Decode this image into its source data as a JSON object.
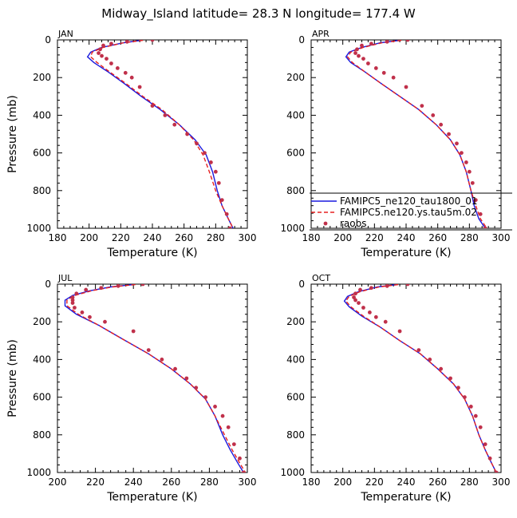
{
  "title": "Midway_Island  latitude= 28.3 N longitude= 177.4 W",
  "colors": {
    "model1": "#1a1adf",
    "model2": "#e62020",
    "obs": "#c0304a",
    "axis": "#000000"
  },
  "legend": {
    "items": [
      {
        "label": "FAMIPC5_ne120_tau1800_01",
        "style": "solid",
        "color": "#1a1adf"
      },
      {
        "label": "FAMIPC5.ne120.ys.tau5m.02",
        "style": "dashed",
        "color": "#e62020"
      },
      {
        "label": "raobs",
        "style": "dot",
        "color": "#c0304a"
      }
    ]
  },
  "chart_data": [
    {
      "type": "line",
      "title": "JAN",
      "xlabel": "Temperature (K)",
      "ylabel": "Pressure (mb)",
      "xlim": [
        180,
        300
      ],
      "ylim": [
        1000,
        0
      ],
      "xticks": [
        180,
        200,
        220,
        240,
        260,
        280,
        300
      ],
      "yticks": [
        0,
        200,
        400,
        600,
        800,
        1000
      ],
      "series": [
        {
          "name": "FAMIPC5_ne120_tau1800_01",
          "style": "solid",
          "x": [
            233,
            222,
            208,
            201,
            199,
            203,
            212,
            222,
            233,
            245,
            257,
            267,
            274,
            278,
            281,
            284,
            288,
            291
          ],
          "y": [
            2,
            15,
            40,
            65,
            90,
            120,
            170,
            230,
            300,
            370,
            450,
            530,
            610,
            700,
            800,
            880,
            950,
            1000
          ]
        },
        {
          "name": "FAMIPC5.ne120.ys.tau5m.02",
          "style": "dashed",
          "x": [
            234,
            222,
            209,
            202,
            201,
            205,
            213,
            223,
            234,
            246,
            257,
            266,
            272,
            276,
            280,
            284,
            288,
            291
          ],
          "y": [
            2,
            15,
            40,
            65,
            90,
            120,
            170,
            230,
            300,
            370,
            450,
            530,
            610,
            700,
            800,
            880,
            950,
            1000
          ]
        },
        {
          "name": "raobs",
          "style": "dot",
          "x": [
            240,
            224,
            214,
            209,
            207,
            206,
            208,
            211,
            214,
            218,
            223,
            227,
            232,
            240,
            248,
            254,
            262,
            268,
            273,
            277,
            280,
            282,
            284,
            287,
            289
          ],
          "y": [
            0,
            10,
            20,
            30,
            50,
            70,
            85,
            100,
            125,
            150,
            175,
            200,
            250,
            350,
            400,
            450,
            500,
            550,
            600,
            650,
            700,
            760,
            850,
            925,
            1000
          ]
        }
      ]
    },
    {
      "type": "line",
      "title": "APR",
      "xlabel": "Temperature (K)",
      "ylabel": "",
      "xlim": [
        180,
        300
      ],
      "ylim": [
        1000,
        0
      ],
      "xticks": [
        180,
        200,
        220,
        240,
        260,
        280,
        300
      ],
      "yticks": [
        0,
        200,
        400,
        600,
        800,
        1000
      ],
      "series": [
        {
          "name": "FAMIPC5_ne120_tau1800_01",
          "style": "solid",
          "x": [
            236,
            224,
            212,
            204,
            202,
            205,
            214,
            224,
            236,
            248,
            259,
            268,
            274,
            278,
            281,
            283,
            286,
            290
          ],
          "y": [
            2,
            15,
            40,
            65,
            90,
            120,
            170,
            230,
            300,
            370,
            450,
            530,
            610,
            700,
            800,
            880,
            950,
            1000
          ]
        },
        {
          "name": "FAMIPC5.ne120.ys.tau5m.02",
          "style": "dashed",
          "x": [
            237,
            225,
            213,
            205,
            203,
            206,
            214,
            224,
            236,
            248,
            259,
            268,
            274,
            278,
            281,
            284,
            287,
            291
          ],
          "y": [
            2,
            15,
            40,
            65,
            90,
            120,
            170,
            230,
            300,
            370,
            450,
            530,
            610,
            700,
            800,
            880,
            950,
            1000
          ]
        },
        {
          "name": "raobs",
          "style": "dot",
          "x": [
            241,
            228,
            218,
            212,
            209,
            208,
            210,
            213,
            216,
            221,
            226,
            232,
            240,
            250,
            257,
            262,
            267,
            272,
            275,
            278,
            280,
            282,
            284,
            287,
            290
          ],
          "y": [
            0,
            10,
            20,
            30,
            50,
            70,
            85,
            100,
            125,
            150,
            175,
            200,
            250,
            350,
            400,
            450,
            500,
            550,
            600,
            650,
            700,
            760,
            850,
            925,
            1000
          ]
        }
      ]
    },
    {
      "type": "line",
      "title": "JUL",
      "xlabel": "Temperature (K)",
      "ylabel": "Pressure (mb)",
      "xlim": [
        200,
        300
      ],
      "ylim": [
        1000,
        0
      ],
      "xticks": [
        200,
        220,
        240,
        260,
        280,
        300
      ],
      "yticks": [
        0,
        200,
        400,
        600,
        800,
        1000
      ],
      "series": [
        {
          "name": "FAMIPC5_ne120_tau1800_01",
          "style": "solid",
          "x": [
            240,
            228,
            217,
            208,
            204,
            204,
            210,
            222,
            234,
            248,
            260,
            270,
            278,
            283,
            287,
            291,
            295,
            298
          ],
          "y": [
            2,
            15,
            35,
            60,
            85,
            115,
            160,
            220,
            290,
            370,
            450,
            530,
            610,
            700,
            800,
            880,
            950,
            1000
          ]
        },
        {
          "name": "FAMIPC5.ne120.ys.tau5m.02",
          "style": "dashed",
          "x": [
            241,
            229,
            218,
            209,
            205,
            205,
            211,
            222,
            234,
            248,
            260,
            270,
            278,
            283,
            288,
            292,
            296,
            299
          ],
          "y": [
            2,
            15,
            35,
            60,
            85,
            115,
            160,
            220,
            290,
            370,
            450,
            530,
            610,
            700,
            800,
            880,
            950,
            1000
          ]
        },
        {
          "name": "raobs",
          "style": "dot",
          "x": [
            245,
            232,
            223,
            215,
            210,
            208,
            208,
            208,
            209,
            213,
            217,
            225,
            240,
            248,
            255,
            262,
            268,
            273,
            278,
            283,
            287,
            290,
            293,
            296,
            298
          ],
          "y": [
            0,
            10,
            20,
            30,
            50,
            70,
            85,
            100,
            125,
            150,
            175,
            200,
            250,
            350,
            400,
            450,
            500,
            550,
            600,
            650,
            700,
            760,
            850,
            925,
            1000
          ]
        }
      ]
    },
    {
      "type": "line",
      "title": "OCT",
      "xlabel": "Temperature (K)",
      "ylabel": "",
      "xlim": [
        180,
        300
      ],
      "ylim": [
        1000,
        0
      ],
      "xticks": [
        180,
        200,
        220,
        240,
        260,
        280,
        300
      ],
      "yticks": [
        0,
        200,
        400,
        600,
        800,
        1000
      ],
      "series": [
        {
          "name": "FAMIPC5_ne120_tau1800_01",
          "style": "solid",
          "x": [
            234,
            222,
            210,
            203,
            201,
            204,
            212,
            224,
            236,
            249,
            260,
            270,
            277,
            282,
            286,
            290,
            294,
            297
          ],
          "y": [
            2,
            15,
            40,
            65,
            90,
            120,
            170,
            230,
            300,
            370,
            450,
            530,
            610,
            700,
            800,
            880,
            950,
            1000
          ]
        },
        {
          "name": "FAMIPC5.ne120.ys.tau5m.02",
          "style": "dashed",
          "x": [
            235,
            223,
            211,
            204,
            202,
            205,
            213,
            224,
            236,
            249,
            260,
            270,
            277,
            282,
            286,
            290,
            294,
            297
          ],
          "y": [
            2,
            15,
            40,
            65,
            90,
            120,
            170,
            230,
            300,
            370,
            450,
            530,
            610,
            700,
            800,
            880,
            950,
            1000
          ]
        },
        {
          "name": "raobs",
          "style": "dot",
          "x": [
            241,
            228,
            218,
            211,
            208,
            207,
            208,
            210,
            213,
            217,
            221,
            227,
            236,
            248,
            255,
            262,
            268,
            273,
            277,
            281,
            284,
            287,
            290,
            293,
            297
          ],
          "y": [
            0,
            10,
            20,
            30,
            50,
            70,
            85,
            100,
            125,
            150,
            175,
            200,
            250,
            350,
            400,
            450,
            500,
            550,
            600,
            650,
            700,
            760,
            850,
            925,
            1000
          ]
        }
      ]
    }
  ]
}
